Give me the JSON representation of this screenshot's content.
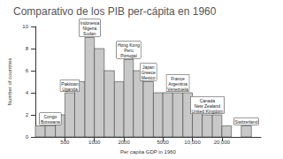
{
  "chart_data": {
    "type": "histogram",
    "title": "Comparativo de los PIB per-cápita en 1960",
    "x_label": "Per capita GDP in 1960",
    "y_label": "Number of countries",
    "bins": [
      250,
      315,
      400,
      500,
      630,
      800,
      1000,
      1260,
      1600,
      2000,
      2500,
      3150,
      4000,
      5000,
      6300,
      8000,
      10000,
      12600,
      16000,
      20000,
      25000,
      31500,
      40000,
      50000
    ],
    "values": [
      1,
      1,
      2,
      4,
      5,
      9,
      8,
      6,
      5,
      7,
      6,
      5,
      4,
      4,
      4,
      4,
      3,
      2,
      2,
      1,
      0,
      1,
      0
    ],
    "annotations": [
      null,
      "Congo\nBotswana",
      null,
      "Pakistan\nUganda",
      null,
      "Indonesia\nNigeria\nSudan",
      null,
      null,
      null,
      "Hong Kong\nPeru\nPortugal",
      null,
      "Japan\nGreece\nMexico",
      null,
      null,
      "France\nArgentina\nVenezuela",
      null,
      null,
      "Canada\nNew Zealand\nUnited Kingdom",
      null,
      null,
      null,
      "Switzerland",
      null
    ],
    "color": "#c8c8c8",
    "log": "x",
    "xlim": [
      250,
      50000
    ],
    "xticks": [
      500,
      1000,
      2000,
      5000,
      {
        "value": 10000,
        "label": "10,000"
      },
      {
        "value": 20000,
        "label": "20,000"
      }
    ],
    "ylim": [
      0,
      10
    ],
    "yticks": [
      0,
      2,
      4,
      6,
      8,
      10
    ],
    "grid": false
  }
}
